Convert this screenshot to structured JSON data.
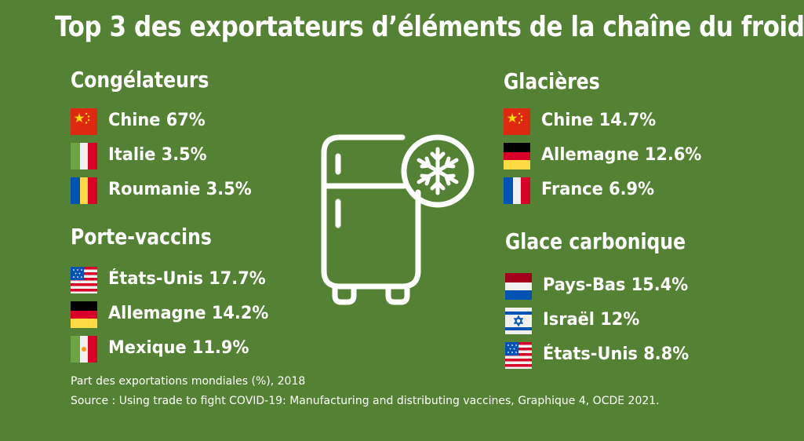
{
  "title": "Top 3 des exportateurs d’éléments de la chaîne du froid",
  "groups": [
    {
      "heading": "Congélateurs",
      "entries": [
        {
          "label": "Chine 67%",
          "flag_icon": "china-flag-icon"
        },
        {
          "label": "Italie 3.5%",
          "flag_icon": "italy-flag-icon"
        },
        {
          "label": "Roumanie 3.5%",
          "flag_icon": "romania-flag-icon"
        }
      ]
    },
    {
      "heading": "Porte-vaccins",
      "entries": [
        {
          "label": "États-Unis 17.7%",
          "flag_icon": "usa-flag-icon"
        },
        {
          "label": "Allemagne 14.2%",
          "flag_icon": "germany-flag-icon"
        },
        {
          "label": "Mexique 11.9%",
          "flag_icon": "mexico-flag-icon"
        }
      ]
    },
    {
      "heading": "Glacières",
      "entries": [
        {
          "label": "Chine 14.7%",
          "flag_icon": "china-flag-icon"
        },
        {
          "label": "Allemagne 12.6%",
          "flag_icon": "germany-flag-icon"
        },
        {
          "label": "France 6.9%",
          "flag_icon": "france-flag-icon"
        }
      ]
    },
    {
      "heading": "Glace carbonique",
      "entries": [
        {
          "label": "Pays-Bas 15.4%",
          "flag_icon": "netherlands-flag-icon"
        },
        {
          "label": "Israël 12%",
          "flag_icon": "israel-flag-icon"
        },
        {
          "label": "États-Unis 8.8%",
          "flag_icon": "usa-flag-icon"
        }
      ]
    }
  ],
  "center_icon": "fridge-snowflake-icon",
  "footnote": {
    "line1": "Part des exportations mondiales (%), 2018",
    "line2": "Source : Using trade to fight COVID-19: Manufacturing and distributing vaccines, Graphique 4, OCDE 2021."
  },
  "colors": {
    "background": "#548235",
    "text": "#ffffff"
  }
}
